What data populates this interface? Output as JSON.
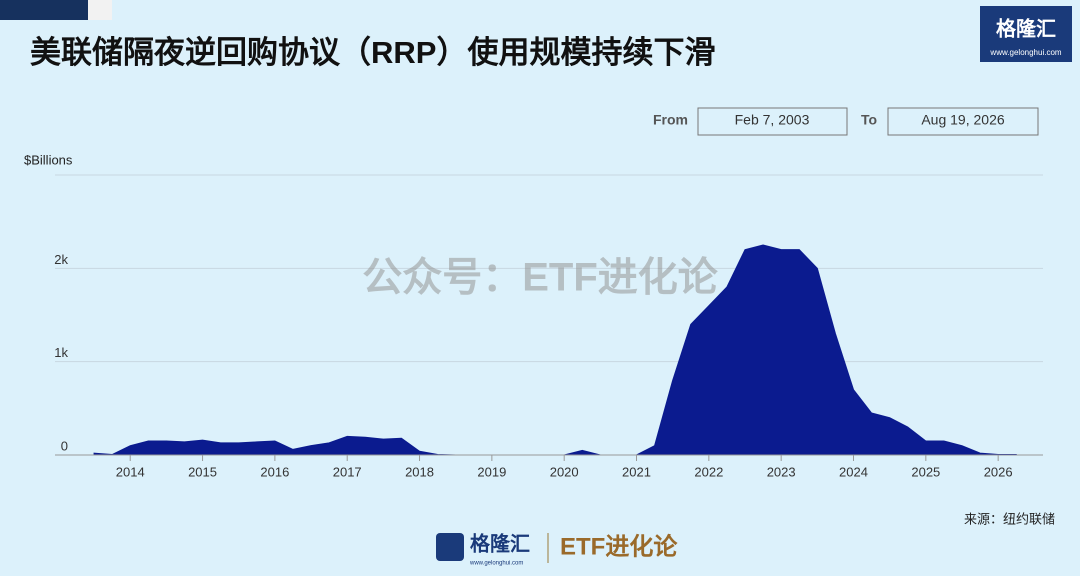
{
  "chart_data": {
    "type": "area",
    "title": "美联储隔夜逆回购协议（RRP）使用规模持续下滑",
    "y_label": "$Billions",
    "x": [
      2013.5,
      2013.75,
      2014.0,
      2014.25,
      2014.5,
      2014.75,
      2015.0,
      2015.25,
      2015.5,
      2015.75,
      2016.0,
      2016.25,
      2016.5,
      2016.75,
      2017.0,
      2017.25,
      2017.5,
      2017.75,
      2018.0,
      2018.25,
      2018.5,
      2018.75,
      2019.0,
      2019.25,
      2019.5,
      2019.75,
      2020.0,
      2020.25,
      2020.5,
      2020.75,
      2021.0,
      2021.25,
      2021.5,
      2021.75,
      2022.0,
      2022.25,
      2022.5,
      2022.75,
      2023.0,
      2023.25,
      2023.5,
      2023.75,
      2024.0,
      2024.25,
      2024.5,
      2024.75,
      2025.0,
      2025.25,
      2025.5,
      2025.75,
      2026.0,
      2026.25
    ],
    "series": [
      {
        "name": "RRP",
        "color": "#0b1b8f",
        "values": [
          20,
          5,
          100,
          150,
          150,
          140,
          160,
          130,
          130,
          140,
          150,
          60,
          100,
          130,
          200,
          190,
          170,
          180,
          40,
          5,
          0,
          0,
          0,
          0,
          0,
          0,
          0,
          50,
          0,
          0,
          0,
          100,
          800,
          1400,
          1600,
          1800,
          2200,
          2250,
          2200,
          2200,
          2000,
          1300,
          700,
          450,
          400,
          300,
          150,
          150,
          100,
          20,
          5,
          5
        ]
      }
    ],
    "xlim": [
      2012.96,
      2026.62
    ],
    "xticks": [
      2014,
      2015,
      2016,
      2017,
      2018,
      2019,
      2020,
      2021,
      2022,
      2023,
      2024,
      2025,
      2026
    ],
    "ylim": [
      0,
      3000
    ],
    "yticks": [
      0,
      {
        "value": 1000,
        "label": "1k"
      },
      {
        "value": 2000,
        "label": "2k"
      }
    ],
    "grid": true
  },
  "range": {
    "from_label": "From",
    "from": "Feb 7, 2003",
    "to_label": "To",
    "to": "Aug 19, 2026"
  },
  "watermark": "公众号：ETF进化论",
  "source": "来源：纽约联储",
  "logo": {
    "name": "格隆汇",
    "url": "www.gelonghui.com",
    "account": "ETF进化论"
  }
}
